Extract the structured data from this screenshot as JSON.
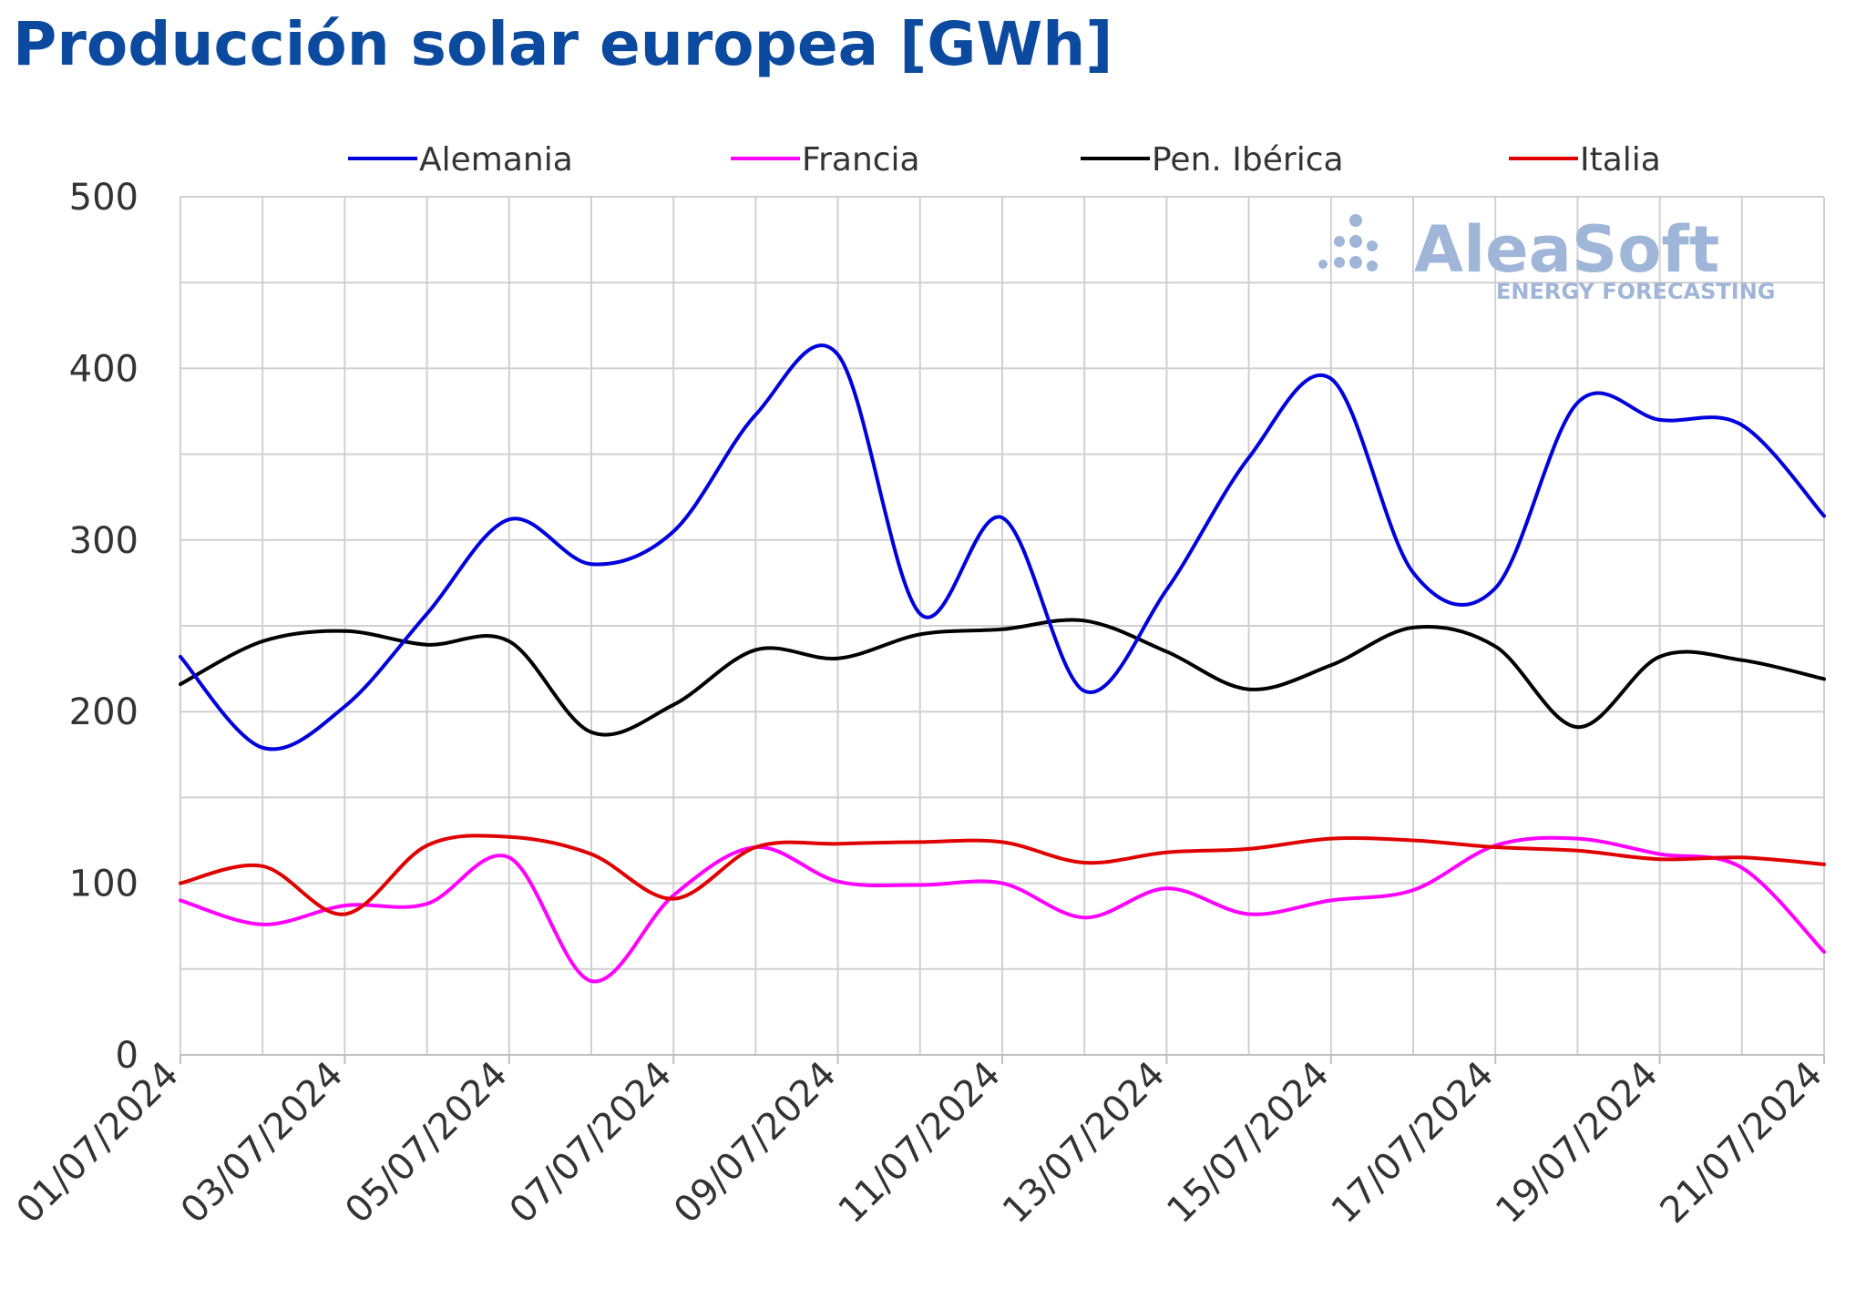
{
  "chart_data": {
    "type": "line",
    "title": "Producción solar europea [GWh]",
    "xlabel": "",
    "ylabel": "",
    "ylim": [
      0,
      500
    ],
    "ytick_step": 50,
    "ytick_labels": [
      "0",
      "100",
      "200",
      "300",
      "400",
      "500"
    ],
    "ytick_label_values": [
      0,
      100,
      200,
      300,
      400,
      500
    ],
    "x": [
      "01/07/2024",
      "02/07/2024",
      "03/07/2024",
      "04/07/2024",
      "05/07/2024",
      "06/07/2024",
      "07/07/2024",
      "08/07/2024",
      "09/07/2024",
      "10/07/2024",
      "11/07/2024",
      "12/07/2024",
      "13/07/2024",
      "14/07/2024",
      "15/07/2024",
      "16/07/2024",
      "17/07/2024",
      "18/07/2024",
      "19/07/2024",
      "20/07/2024",
      "21/07/2024"
    ],
    "xtick_labels": [
      "01/07/2024",
      "03/07/2024",
      "05/07/2024",
      "07/07/2024",
      "09/07/2024",
      "11/07/2024",
      "13/07/2024",
      "15/07/2024",
      "17/07/2024",
      "19/07/2024",
      "21/07/2024"
    ],
    "grid": true,
    "legend_position": "top",
    "series": [
      {
        "name": "Alemania",
        "color": "#0000dd",
        "values": [
          232,
          179,
          203,
          257,
          312,
          286,
          305,
          373,
          408,
          257,
          313,
          212,
          271,
          348,
          394,
          281,
          272,
          380,
          370,
          367,
          314
        ]
      },
      {
        "name": "Francia",
        "color": "#ff00ff",
        "values": [
          90,
          76,
          87,
          88,
          115,
          43,
          93,
          121,
          101,
          99,
          100,
          80,
          97,
          82,
          90,
          96,
          122,
          126,
          117,
          109,
          60
        ]
      },
      {
        "name": "Pen. Ibérica",
        "color": "#000000",
        "values": [
          216,
          241,
          247,
          239,
          241,
          188,
          204,
          236,
          231,
          245,
          248,
          253,
          235,
          213,
          227,
          249,
          238,
          191,
          232,
          230,
          219
        ]
      },
      {
        "name": "Italia",
        "color": "#e00000",
        "values": [
          100,
          110,
          82,
          122,
          127,
          117,
          91,
          121,
          123,
          124,
          124,
          112,
          118,
          120,
          126,
          125,
          121,
          119,
          114,
          115,
          111
        ]
      }
    ]
  },
  "watermark": {
    "brand": "AleaSoft",
    "tagline": "ENERGY FORECASTING",
    "color": "#9fb6d8"
  }
}
